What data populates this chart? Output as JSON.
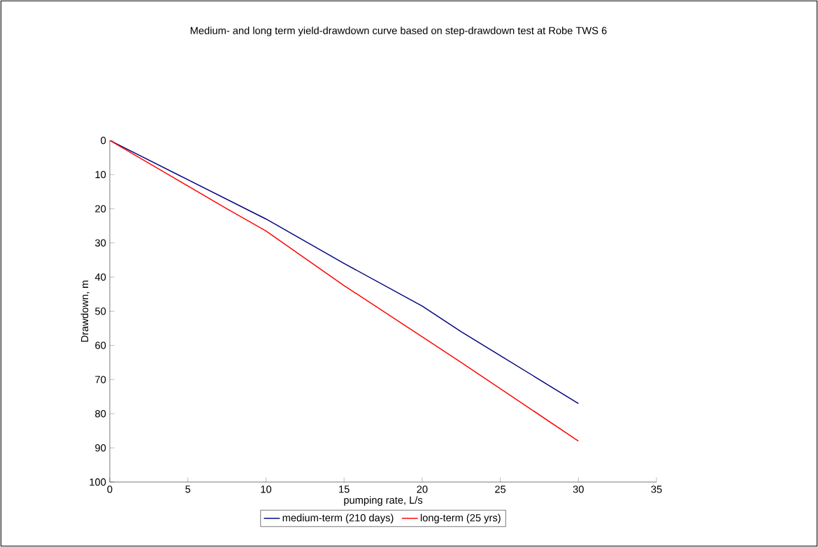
{
  "chart_data": {
    "type": "line",
    "title": "Medium- and long term yield-drawdown curve based on step-drawdown test at Robe TWS 6",
    "xlabel": "pumping rate, L/s",
    "ylabel": "Drawdown, m",
    "xlim": [
      0,
      35
    ],
    "xticks": [
      0,
      5,
      10,
      15,
      20,
      25,
      30,
      35
    ],
    "ylim": [
      100,
      0
    ],
    "yticks": [
      0,
      10,
      20,
      30,
      40,
      50,
      60,
      70,
      80,
      90,
      100
    ],
    "legend": "bottom",
    "series": [
      {
        "name": "medium-term (210 days)",
        "color": "#000080",
        "x": [
          0,
          10,
          15,
          20,
          22.5,
          30
        ],
        "values": [
          0,
          23,
          36,
          48.5,
          56,
          77
        ]
      },
      {
        "name": "long-term (25 yrs)",
        "color": "#ff0000",
        "x": [
          0,
          7.5,
          10,
          15,
          20,
          22.5,
          30
        ],
        "values": [
          0,
          20,
          26.5,
          42.5,
          57.5,
          65,
          88
        ]
      }
    ]
  }
}
